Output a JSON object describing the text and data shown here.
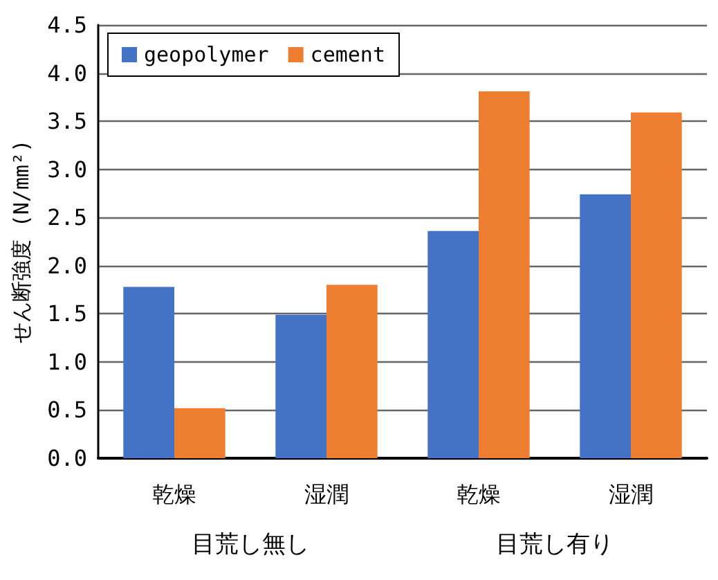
{
  "chart_data": {
    "type": "bar",
    "ylabel": "せん断強度 (N/mm²)",
    "categories": [
      "乾燥",
      "湿潤",
      "乾燥",
      "湿潤"
    ],
    "annotations": [
      "目荒し無し",
      "目荒し有り"
    ],
    "series": [
      {
        "name": "geopolymer",
        "color": "#4472c4",
        "values": [
          1.78,
          1.49,
          2.36,
          2.74
        ]
      },
      {
        "name": "cement",
        "color": "#ed7d31",
        "values": [
          0.52,
          1.8,
          3.81,
          3.59
        ]
      }
    ],
    "ylim": [
      0,
      4.5
    ],
    "yticks": [
      {
        "value": 0,
        "label": "0.0"
      },
      {
        "value": 0.5,
        "label": "0.5"
      },
      {
        "value": 1,
        "label": "1.0"
      },
      {
        "value": 1.5,
        "label": "1.5"
      },
      {
        "value": 2,
        "label": "2.0"
      },
      {
        "value": 2.5,
        "label": "2.5"
      },
      {
        "value": 3,
        "label": "3.0"
      },
      {
        "value": 3.5,
        "label": "3.5"
      },
      {
        "value": 4,
        "label": "4.0"
      },
      {
        "value": 4.5,
        "label": "4.5"
      }
    ],
    "grid": "y",
    "legend": "top left"
  }
}
